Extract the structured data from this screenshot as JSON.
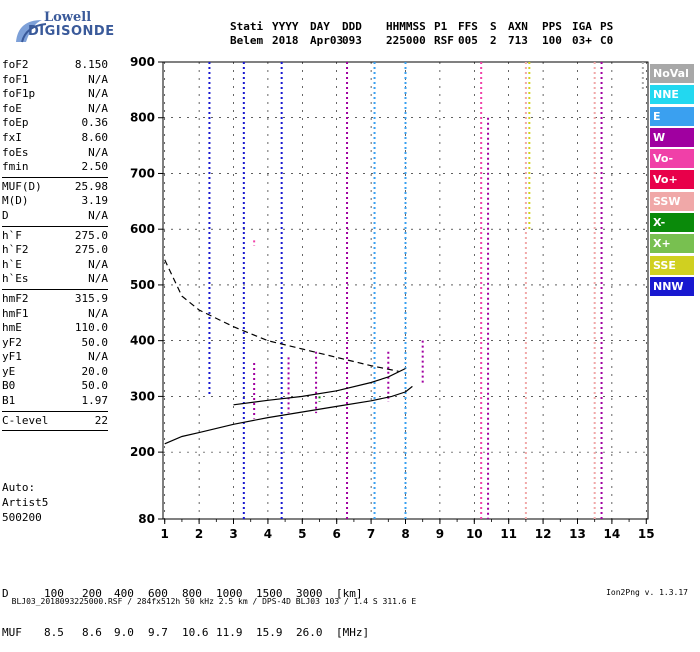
{
  "logo": {
    "line1": "Lowell",
    "line2": "DIGISONDE"
  },
  "header": {
    "row1": [
      "Stati",
      "YYYY",
      "DAY",
      "DDD",
      "HHMMSS",
      "P1",
      "FFS",
      "S",
      "AXN",
      "PPS",
      "IGA",
      "PS"
    ],
    "row2": [
      "Belem",
      "2018",
      "Apr03",
      "093",
      "225000",
      "RSF",
      "005",
      "2",
      "713",
      "100",
      "03+",
      "C0"
    ]
  },
  "params": [
    {
      "label": "foF2",
      "value": "8.150"
    },
    {
      "label": "foF1",
      "value": "N/A"
    },
    {
      "label": "foF1p",
      "value": "N/A"
    },
    {
      "label": "foE",
      "value": "N/A"
    },
    {
      "label": "foEp",
      "value": "0.36"
    },
    {
      "label": "fxI",
      "value": "8.60"
    },
    {
      "label": "foEs",
      "value": "N/A"
    },
    {
      "label": "fmin",
      "value": "2.50"
    },
    {
      "label": "MUF(D)",
      "value": "25.98",
      "sep": true
    },
    {
      "label": "M(D)",
      "value": "3.19"
    },
    {
      "label": "D",
      "value": "N/A"
    },
    {
      "label": "h`F",
      "value": "275.0",
      "sep": true
    },
    {
      "label": "h`F2",
      "value": "275.0"
    },
    {
      "label": "h`E",
      "value": "N/A"
    },
    {
      "label": "h`Es",
      "value": "N/A"
    },
    {
      "label": "hmF2",
      "value": "315.9",
      "sep": true
    },
    {
      "label": "hmF1",
      "value": "N/A"
    },
    {
      "label": "hmE",
      "value": "110.0"
    },
    {
      "label": "yF2",
      "value": "50.0"
    },
    {
      "label": "yF1",
      "value": "N/A"
    },
    {
      "label": "yE",
      "value": "20.0"
    },
    {
      "label": "B0",
      "value": "50.0"
    },
    {
      "label": "B1",
      "value": "1.97"
    },
    {
      "label": "C-level",
      "value": "22",
      "sep": true
    }
  ],
  "auto": {
    "line1": "Auto:",
    "line2": "Artist5",
    "line3": "500200"
  },
  "legend": [
    {
      "name": "NoVal",
      "color": "#a8a8a8"
    },
    {
      "name": "NNE",
      "color": "#22d8f0"
    },
    {
      "name": "E",
      "color": "#3aa0f0"
    },
    {
      "name": "W",
      "color": "#a000a0"
    },
    {
      "name": "Vo-",
      "color": "#f040a8"
    },
    {
      "name": "Vo+",
      "color": "#e8004a"
    },
    {
      "name": "SSW",
      "color": "#f0a8a8"
    },
    {
      "name": "X-",
      "color": "#0a8a0a"
    },
    {
      "name": "X+",
      "color": "#78c050"
    },
    {
      "name": "SSE",
      "color": "#d0d020"
    },
    {
      "name": "NNW",
      "color": "#1818d0"
    }
  ],
  "chart_data": {
    "type": "scatter",
    "x_ticks": [
      1,
      2,
      3,
      4,
      5,
      6,
      7,
      8,
      9,
      10,
      11,
      12,
      13,
      14,
      15
    ],
    "y_ticks": [
      80,
      200,
      300,
      400,
      500,
      600,
      700,
      800,
      900
    ],
    "xlim": [
      0.95,
      15.05
    ],
    "ylim": [
      80,
      900
    ],
    "grid": true,
    "traces": [
      {
        "style": "dashed",
        "x": [
          1.0,
          1.5,
          2.0,
          3.0,
          4.0,
          5.0,
          6.0,
          7.0,
          7.8
        ],
        "y": [
          545,
          480,
          455,
          425,
          400,
          385,
          370,
          355,
          345
        ]
      },
      {
        "style": "solid-lower",
        "x": [
          1.0,
          1.5,
          2.0,
          3.0,
          4.0,
          5.0,
          6.0,
          7.0,
          7.6,
          8.0,
          8.2
        ],
        "y": [
          215,
          228,
          235,
          250,
          262,
          272,
          282,
          292,
          300,
          308,
          318
        ]
      },
      {
        "style": "solid-upper",
        "x": [
          3.0,
          4.0,
          5.0,
          6.0,
          7.0,
          7.5,
          8.0
        ],
        "y": [
          285,
          293,
          300,
          310,
          325,
          335,
          350
        ]
      }
    ],
    "echo_bands": [
      {
        "series": "W",
        "x": 3.6,
        "y": [
          260,
          360
        ]
      },
      {
        "series": "W",
        "x": 4.6,
        "y": [
          270,
          370
        ]
      },
      {
        "series": "W",
        "x": 5.4,
        "y": [
          270,
          380
        ]
      },
      {
        "series": "W",
        "x": 6.3,
        "y": [
          80,
          900
        ]
      },
      {
        "series": "W",
        "x": 7.5,
        "y": [
          290,
          380
        ]
      },
      {
        "series": "W",
        "x": 8.5,
        "y": [
          320,
          400
        ]
      },
      {
        "series": "W",
        "x": 10.4,
        "y": [
          80,
          800
        ]
      },
      {
        "series": "W",
        "x": 13.7,
        "y": [
          80,
          900
        ]
      },
      {
        "series": "NNW",
        "x": 2.3,
        "y": [
          300,
          900
        ]
      },
      {
        "series": "NNW",
        "x": 3.3,
        "y": [
          80,
          900
        ]
      },
      {
        "series": "NNW",
        "x": 4.4,
        "y": [
          80,
          900
        ]
      },
      {
        "series": "E",
        "x": 7.1,
        "y": [
          80,
          900
        ]
      },
      {
        "series": "E",
        "x": 8.0,
        "y": [
          80,
          900
        ]
      },
      {
        "series": "Vo-",
        "x": 3.6,
        "y": [
          570,
          580
        ]
      },
      {
        "series": "Vo-",
        "x": 10.2,
        "y": [
          80,
          900
        ]
      },
      {
        "series": "SSW",
        "x": 11.5,
        "y": [
          80,
          900
        ]
      },
      {
        "series": "SSW",
        "x": 13.5,
        "y": [
          80,
          900
        ]
      },
      {
        "series": "SSE",
        "x": 11.6,
        "y": [
          600,
          900
        ]
      },
      {
        "series": "X-",
        "x": 5.5,
        "y": [
          290,
          300
        ]
      },
      {
        "series": "NoVal",
        "x": 14.9,
        "y": [
          850,
          900
        ]
      }
    ]
  },
  "dmuf": {
    "d_label": "D",
    "d_values": [
      "100",
      "200",
      "400",
      "600",
      "800",
      "1000",
      "1500",
      "3000",
      "[km]"
    ],
    "muf_label": "MUF",
    "muf_values": [
      "8.5",
      "8.6",
      "9.0",
      "9.7",
      "10.6",
      "11.9",
      "15.9",
      "26.0",
      "[MHz]"
    ]
  },
  "footer": {
    "text": "BLJ03_2018093225000.RSF / 284fx512h 50 kHz 2.5 km / DPS-4D BLJ03 103 / 1.4 S 311.6 E",
    "version": "Ion2Png v. 1.3.17"
  }
}
